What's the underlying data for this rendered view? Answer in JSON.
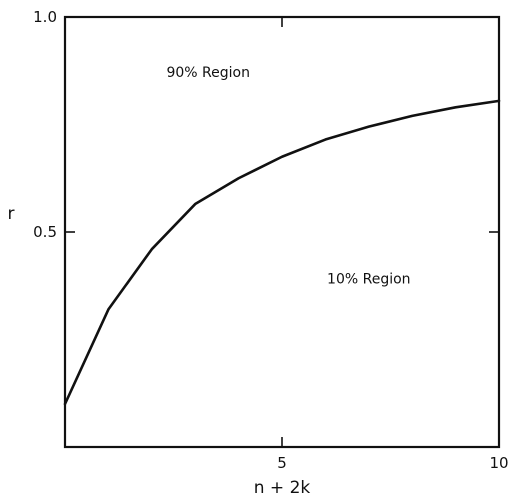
{
  "chart_data": {
    "type": "line",
    "title": "",
    "xlabel": "n + 2k",
    "ylabel": "r",
    "xlim": [
      0,
      10
    ],
    "ylim": [
      0,
      1.0
    ],
    "x_ticks": [
      {
        "value": 5,
        "label": "5"
      },
      {
        "value": 10,
        "label": "10"
      }
    ],
    "y_ticks": [
      {
        "value": 0.5,
        "label": "0.5"
      },
      {
        "value": 1.0,
        "label": "1.0"
      }
    ],
    "grid": false,
    "series": [
      {
        "x": [
          0,
          1,
          2,
          3,
          4,
          5,
          6,
          7,
          8,
          9,
          10
        ],
        "y": [
          0.1,
          0.32,
          0.46,
          0.565,
          0.625,
          0.675,
          0.715,
          0.745,
          0.77,
          0.79,
          0.805
        ]
      }
    ],
    "annotations": [
      {
        "text": "90% Region",
        "x": 3.3,
        "y": 0.86
      },
      {
        "text": "10% Region",
        "x": 7.0,
        "y": 0.38
      }
    ]
  }
}
